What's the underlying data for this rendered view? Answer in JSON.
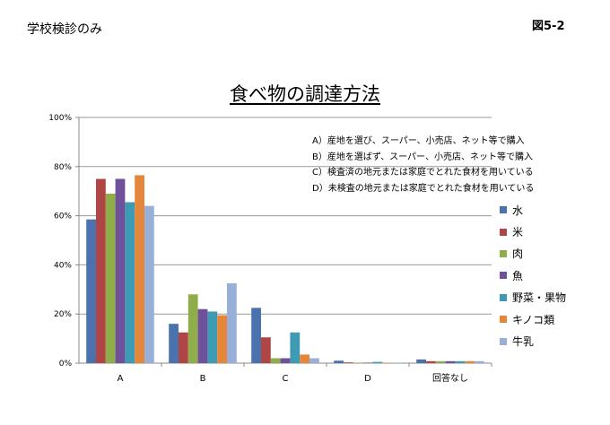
{
  "header": {
    "left": "学校検診のみ",
    "right": "図5-2"
  },
  "chart_data": {
    "type": "bar",
    "title": "食べ物の調達方法",
    "categories": [
      "A",
      "B",
      "C",
      "D",
      "回答なし"
    ],
    "ylim": [
      0,
      100
    ],
    "yticks": [
      "0%",
      "20%",
      "40%",
      "60%",
      "80%",
      "100%"
    ],
    "grid": true,
    "legend_position": "right",
    "series": [
      {
        "name": "水",
        "color": "#4a72ad",
        "values": [
          58.5,
          16,
          22.5,
          1,
          1.5
        ]
      },
      {
        "name": "米",
        "color": "#b04545",
        "values": [
          75,
          12.5,
          10.5,
          0.3,
          0.8
        ]
      },
      {
        "name": "肉",
        "color": "#8fad4a",
        "values": [
          69,
          28,
          2,
          0.2,
          0.8
        ]
      },
      {
        "name": "魚",
        "color": "#6e519a",
        "values": [
          75,
          22,
          2,
          0.2,
          0.8
        ]
      },
      {
        "name": "野菜・果物",
        "color": "#3f9bb4",
        "values": [
          65.5,
          21,
          12.5,
          0.5,
          0.8
        ]
      },
      {
        "name": "キノコ類",
        "color": "#e5873b",
        "values": [
          76.5,
          19.5,
          3.5,
          0.2,
          0.8
        ]
      },
      {
        "name": "牛乳",
        "color": "#98b0d9",
        "values": [
          64,
          32.5,
          2,
          0.2,
          0.8
        ]
      }
    ],
    "notes": [
      "A）産地を選び、スーパー、小売店、ネット等で購入",
      "B）産地を選ばず、スーパー、小売店、ネット等で購入",
      "C）検査済の地元または家庭でとれた食材を用いている",
      "D）未検査の地元または家庭でとれた食材を用いている"
    ]
  }
}
